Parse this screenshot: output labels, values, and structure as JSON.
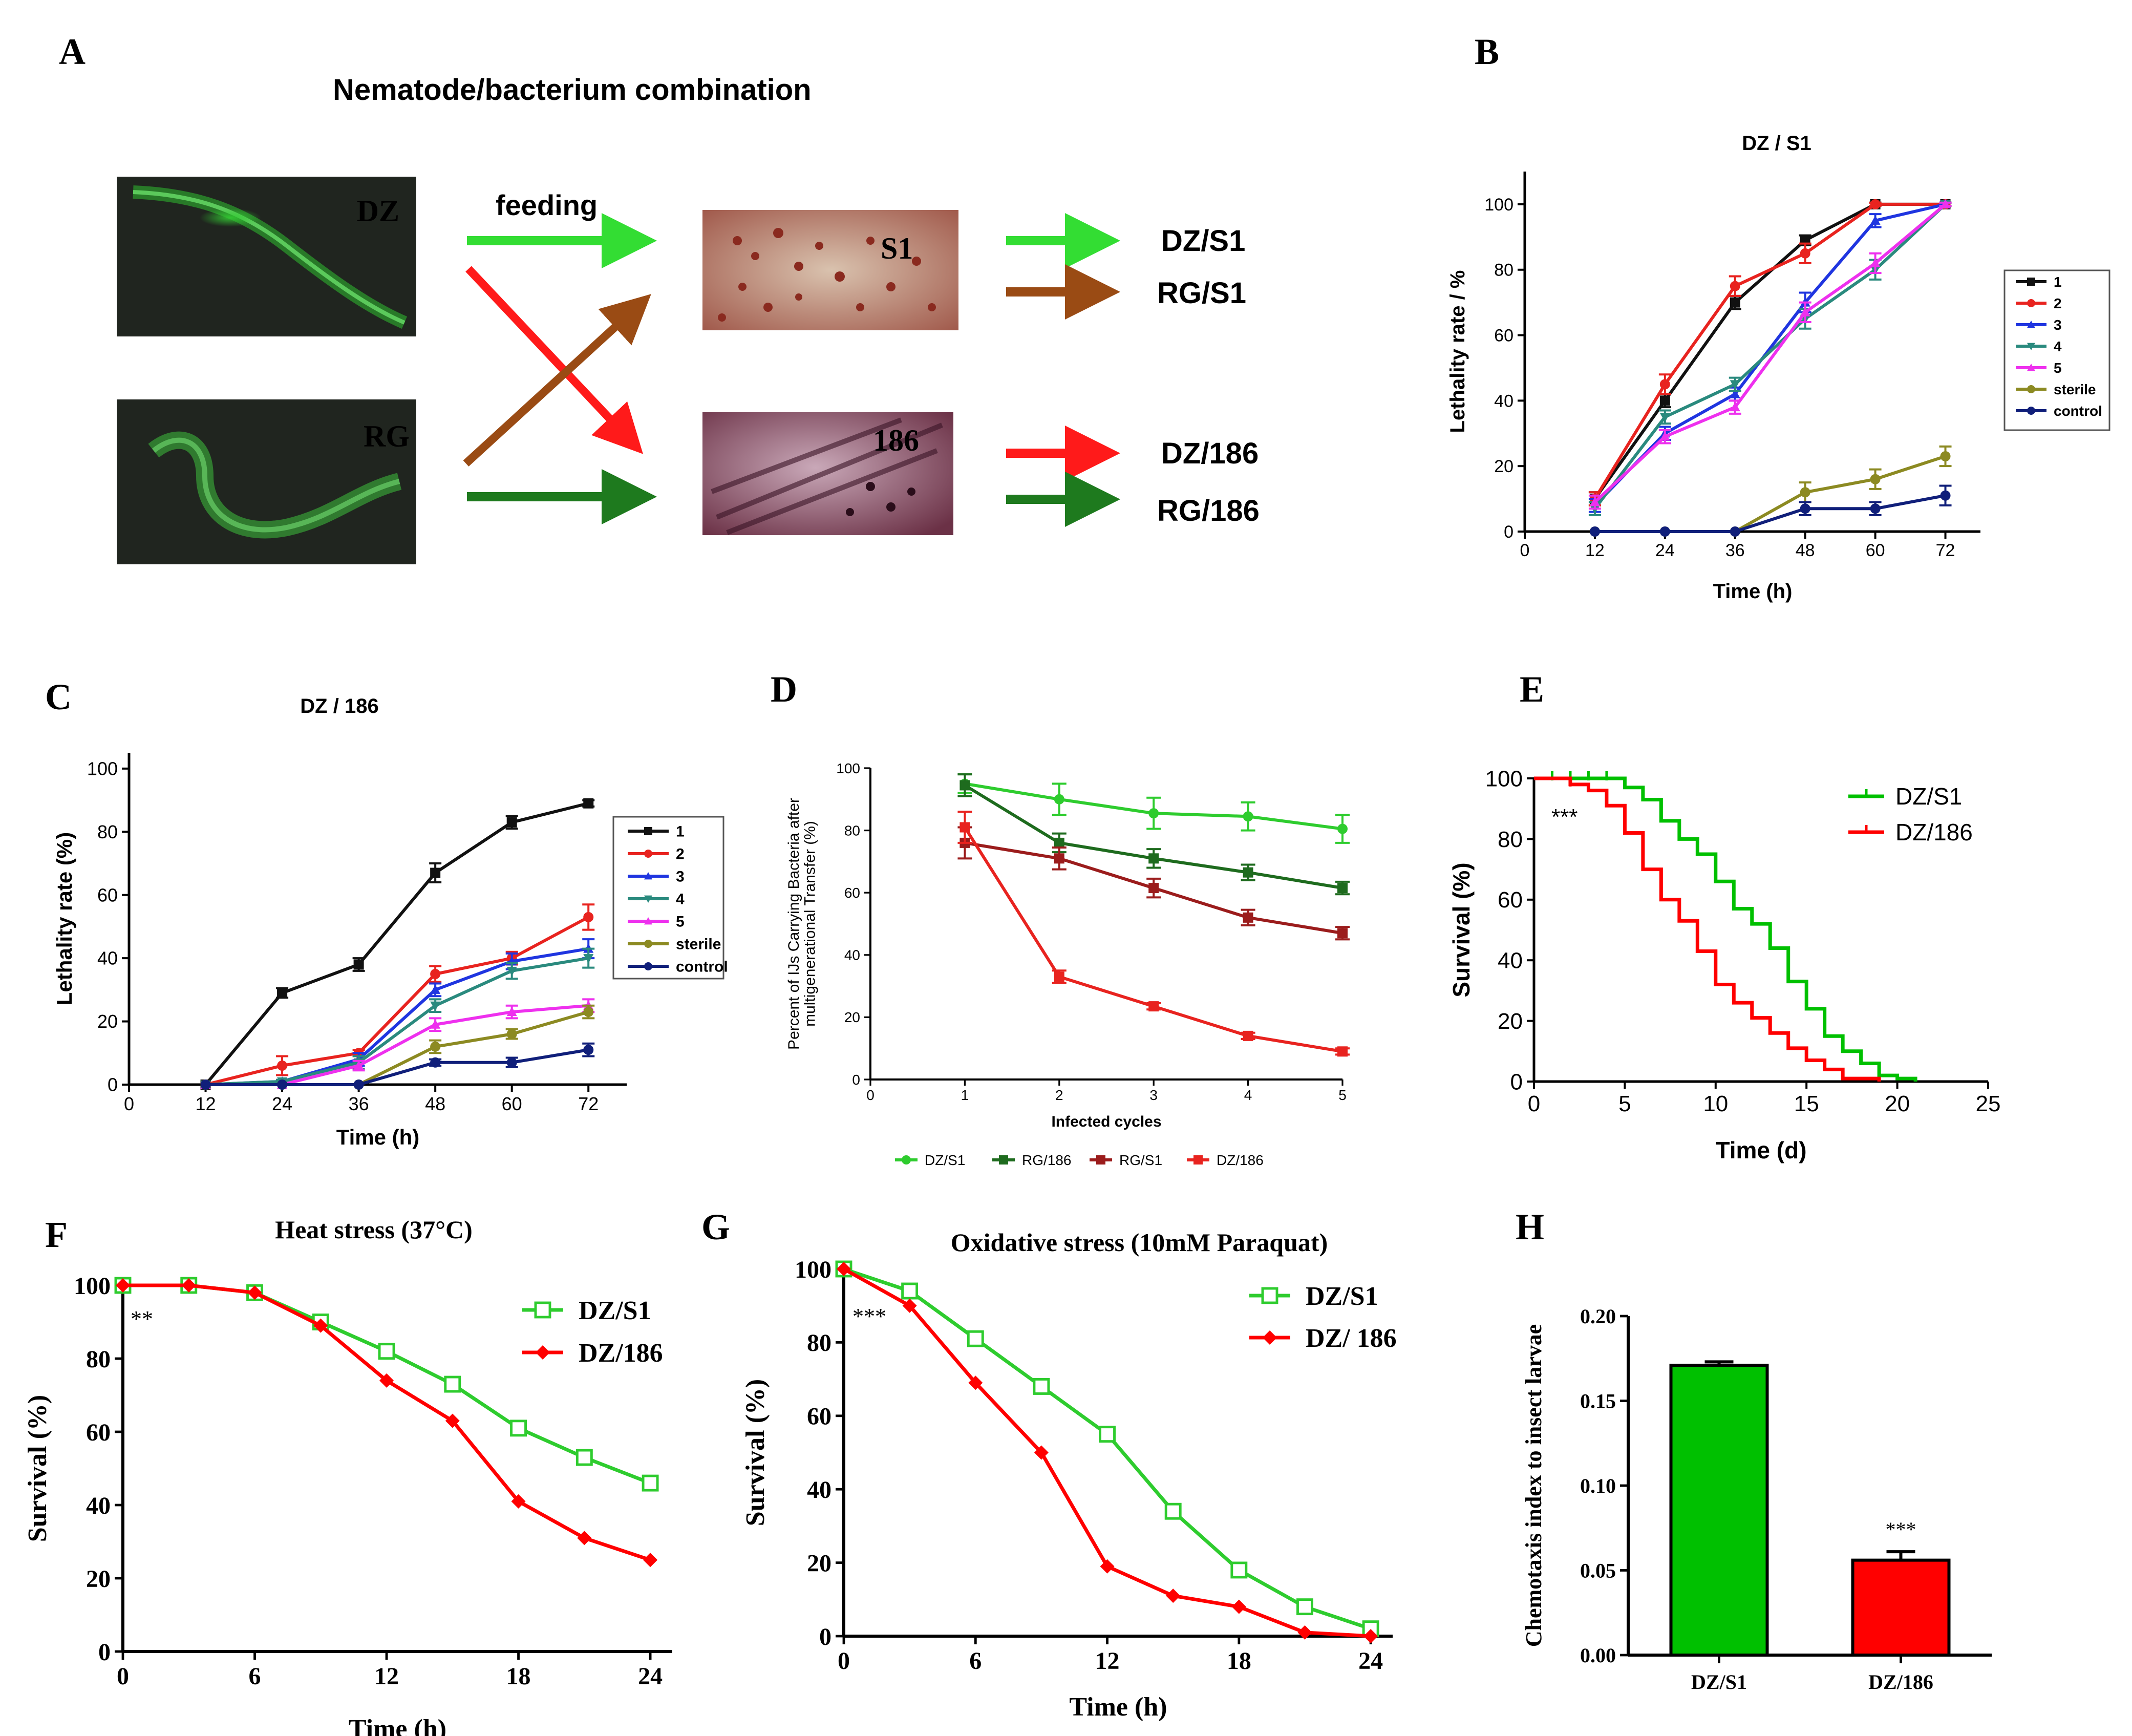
{
  "panel_labels": [
    "A",
    "B",
    "C",
    "D",
    "E",
    "F",
    "G",
    "H"
  ],
  "colors": {
    "black": "#111111",
    "red": "#e8231f",
    "blue": "#1f35e0",
    "teal": "#2a8a7e",
    "magenta": "#ee30ee",
    "olive": "#8c8a22",
    "navy": "#101f7a",
    "light_green": "#2ecc2e",
    "dark_green": "#1e6b1e",
    "dark_red": "#9b1c1c",
    "brown": "#8b4513",
    "bright_green": "#00c000",
    "pure_red": "#ff0000"
  },
  "panel_a": {
    "title": "Nematode/bacterium combination",
    "nematodes": [
      "DZ",
      "RG"
    ],
    "bacteria": [
      "S1",
      "186"
    ],
    "arrow_label": "feeding",
    "combinations": [
      "DZ/S1",
      "RG/S1",
      "DZ/186",
      "RG/186"
    ]
  },
  "chart_data": [
    {
      "panel": "B",
      "type": "line",
      "title": "DZ / S1",
      "xlabel": "Time (h)",
      "ylabel": "Lethality rate / %",
      "xlim": [
        0,
        78
      ],
      "ylim": [
        0,
        110
      ],
      "xticks": [
        0,
        12,
        24,
        36,
        48,
        60,
        72
      ],
      "yticks": [
        0,
        20,
        40,
        60,
        80,
        100
      ],
      "x": [
        12,
        24,
        36,
        48,
        60,
        72
      ],
      "series": [
        {
          "name": "1",
          "color": "#111111",
          "values": [
            10,
            40,
            70,
            89,
            100,
            100
          ],
          "errors": [
            2,
            2,
            2,
            1.5,
            0.5,
            0.5
          ]
        },
        {
          "name": "2",
          "color": "#e8231f",
          "values": [
            10,
            45,
            75,
            85,
            100,
            100
          ],
          "errors": [
            2,
            3,
            3,
            3,
            0.5,
            0.5
          ]
        },
        {
          "name": "3",
          "color": "#1f35e0",
          "values": [
            8,
            30,
            42,
            70,
            95,
            100
          ],
          "errors": [
            2,
            2,
            2,
            3,
            2,
            0.5
          ]
        },
        {
          "name": "4",
          "color": "#2a8a7e",
          "values": [
            7,
            35,
            45,
            65,
            80,
            100
          ],
          "errors": [
            2,
            2,
            2,
            3,
            3,
            0.5
          ]
        },
        {
          "name": "5",
          "color": "#ee30ee",
          "values": [
            9,
            29,
            38,
            67,
            82,
            100
          ],
          "errors": [
            2,
            2,
            2,
            3,
            3,
            0.5
          ]
        },
        {
          "name": "sterile",
          "color": "#8c8a22",
          "values": [
            0,
            0,
            0,
            12,
            16,
            23
          ],
          "errors": [
            0,
            0,
            0,
            3,
            3,
            3
          ]
        },
        {
          "name": "control",
          "color": "#101f7a",
          "values": [
            0,
            0,
            0,
            7,
            7,
            11
          ],
          "errors": [
            0,
            0,
            0,
            2,
            2,
            3
          ]
        }
      ]
    },
    {
      "panel": "C",
      "type": "line",
      "title": "DZ / 186",
      "xlabel": "Time (h)",
      "ylabel": "Lethality rate (%)",
      "xlim": [
        0,
        78
      ],
      "ylim": [
        0,
        105
      ],
      "xticks": [
        0,
        12,
        24,
        36,
        48,
        60,
        72
      ],
      "yticks": [
        0,
        20,
        40,
        60,
        80,
        100
      ],
      "x": [
        12,
        24,
        36,
        48,
        60,
        72
      ],
      "series": [
        {
          "name": "1",
          "color": "#111111",
          "values": [
            0,
            29,
            38,
            67,
            83,
            89
          ],
          "errors": [
            0,
            1.5,
            2,
            3,
            2,
            1
          ]
        },
        {
          "name": "2",
          "color": "#e8231f",
          "values": [
            0,
            6,
            10,
            35,
            40,
            53
          ],
          "errors": [
            0,
            3,
            1,
            2.5,
            2,
            4
          ]
        },
        {
          "name": "3",
          "color": "#1f35e0",
          "values": [
            0,
            1,
            8,
            30,
            39,
            43
          ],
          "errors": [
            0,
            0.5,
            2,
            2,
            2.5,
            3
          ]
        },
        {
          "name": "4",
          "color": "#2a8a7e",
          "values": [
            0,
            1,
            7,
            25,
            36,
            40
          ],
          "errors": [
            0,
            0.5,
            2,
            2,
            2.5,
            3
          ]
        },
        {
          "name": "5",
          "color": "#ee30ee",
          "values": [
            0,
            0,
            6,
            19,
            23,
            25
          ],
          "errors": [
            0,
            0,
            1.5,
            2,
            2,
            2
          ]
        },
        {
          "name": "sterile",
          "color": "#8c8a22",
          "values": [
            0,
            0,
            0,
            12,
            16,
            23
          ],
          "errors": [
            0,
            0,
            0,
            2,
            1.5,
            2
          ]
        },
        {
          "name": "control",
          "color": "#101f7a",
          "values": [
            0,
            0,
            0,
            7,
            7,
            11
          ],
          "errors": [
            0,
            0,
            0,
            1,
            1.5,
            2
          ]
        }
      ]
    },
    {
      "panel": "D",
      "type": "line",
      "title": "",
      "xlabel": "Infected cycles",
      "ylabel_lines": [
        "Percent of IJs Carrying Bacteria after",
        "multigenerational Transfer (%)"
      ],
      "xlim": [
        0,
        5
      ],
      "ylim": [
        0,
        100
      ],
      "xticks": [
        0,
        1,
        2,
        3,
        4,
        5
      ],
      "yticks": [
        0,
        20,
        40,
        60,
        80,
        100
      ],
      "x": [
        1,
        2,
        3,
        4,
        5
      ],
      "series": [
        {
          "name": "DZ/S1",
          "color": "#2ecc2e",
          "values": [
            95,
            90,
            85.5,
            84.5,
            80.5
          ],
          "errors": [
            3,
            5,
            5,
            4.5,
            4.5
          ]
        },
        {
          "name": "RG/186",
          "color": "#1e6b1e",
          "values": [
            94.5,
            76,
            71,
            66.5,
            61.5
          ],
          "errors": [
            3.5,
            3,
            3,
            2.5,
            2
          ]
        },
        {
          "name": "RG/S1",
          "color": "#9b1c1c",
          "values": [
            76,
            71,
            61.5,
            52,
            47
          ],
          "errors": [
            5,
            3.5,
            3,
            2.5,
            2
          ]
        },
        {
          "name": "DZ/186",
          "color": "#e8231f",
          "values": [
            81,
            33,
            23.5,
            14,
            9
          ],
          "errors": [
            5,
            2,
            1,
            1,
            1
          ]
        }
      ]
    },
    {
      "panel": "E",
      "type": "line",
      "subtype": "survival-step",
      "xlabel": "Time (d)",
      "ylabel": "Survival (%)",
      "xlim": [
        0,
        25
      ],
      "ylim": [
        0,
        100
      ],
      "xticks": [
        0,
        5,
        10,
        15,
        20,
        25
      ],
      "yticks": [
        0,
        20,
        40,
        60,
        80,
        100
      ],
      "annotation": "***",
      "series": [
        {
          "name": "DZ/S1",
          "color": "#00c000",
          "steps": [
            [
              0,
              100
            ],
            [
              5,
              97
            ],
            [
              6,
              93
            ],
            [
              7,
              86
            ],
            [
              8,
              80
            ],
            [
              9,
              75
            ],
            [
              10,
              66
            ],
            [
              11,
              57
            ],
            [
              12,
              52
            ],
            [
              13,
              44
            ],
            [
              14,
              33
            ],
            [
              15,
              24
            ],
            [
              16,
              15
            ],
            [
              17,
              10
            ],
            [
              18,
              6
            ],
            [
              19,
              2
            ],
            [
              20,
              1
            ],
            [
              21,
              0
            ]
          ]
        },
        {
          "name": "DZ/186",
          "color": "#ff0000",
          "steps": [
            [
              0,
              100
            ],
            [
              2,
              98
            ],
            [
              3,
              96
            ],
            [
              4,
              91
            ],
            [
              5,
              82
            ],
            [
              6,
              70
            ],
            [
              7,
              60
            ],
            [
              8,
              53
            ],
            [
              9,
              43
            ],
            [
              10,
              32
            ],
            [
              11,
              26
            ],
            [
              12,
              21
            ],
            [
              13,
              16
            ],
            [
              14,
              11
            ],
            [
              15,
              7
            ],
            [
              16,
              4
            ],
            [
              17,
              1
            ],
            [
              19,
              0
            ]
          ]
        }
      ]
    },
    {
      "panel": "F",
      "type": "line",
      "title": "Heat stress (37°C)",
      "xlabel": "Time (h)",
      "ylabel": "Survival (%)",
      "xlim": [
        0,
        25
      ],
      "ylim": [
        0,
        100
      ],
      "xticks": [
        0,
        6,
        12,
        18,
        24
      ],
      "yticks": [
        0,
        20,
        40,
        60,
        80,
        100
      ],
      "annotation": "**",
      "x": [
        0,
        3,
        6,
        9,
        12,
        15,
        18,
        21,
        24
      ],
      "series": [
        {
          "name": "DZ/S1",
          "color": "#2ecc2e",
          "marker": "square-open",
          "values": [
            100,
            100,
            98,
            90,
            82,
            73,
            61,
            53,
            46
          ]
        },
        {
          "name": "DZ/186",
          "color": "#ff0000",
          "marker": "diamond",
          "values": [
            100,
            100,
            98,
            89,
            74,
            63,
            41,
            31,
            25
          ]
        }
      ]
    },
    {
      "panel": "G",
      "type": "line",
      "title": "Oxidative stress (10mM Paraquat)",
      "xlabel": "Time (h)",
      "ylabel": "Survival (%)",
      "xlim": [
        0,
        25
      ],
      "ylim": [
        0,
        100
      ],
      "xticks": [
        0,
        6,
        12,
        18,
        24
      ],
      "yticks": [
        0,
        20,
        40,
        60,
        80,
        100
      ],
      "annotation": "***",
      "x": [
        0,
        3,
        6,
        9,
        12,
        15,
        18,
        21,
        24
      ],
      "series": [
        {
          "name": "DZ/S1",
          "color": "#2ecc2e",
          "marker": "square-open",
          "values": [
            100,
            94,
            81,
            68,
            55,
            34,
            18,
            8,
            2
          ]
        },
        {
          "name": "DZ/ 186",
          "color": "#ff0000",
          "marker": "diamond",
          "values": [
            100,
            90,
            69,
            50,
            19,
            11,
            8,
            1,
            0
          ]
        }
      ]
    },
    {
      "panel": "H",
      "type": "bar",
      "title": "",
      "xlabel": "",
      "ylabel": "Chemotaxis index to insect larvae",
      "ylim": [
        0,
        0.2
      ],
      "yticks": [
        "0.00",
        "0.05",
        "0.10",
        "0.15",
        "0.20"
      ],
      "categories": [
        "DZ/S1",
        "DZ/186"
      ],
      "values": [
        0.171,
        0.056
      ],
      "errors": [
        0.002,
        0.005
      ],
      "colors": [
        "#00c000",
        "#ff0000"
      ],
      "annotation": "***"
    }
  ]
}
